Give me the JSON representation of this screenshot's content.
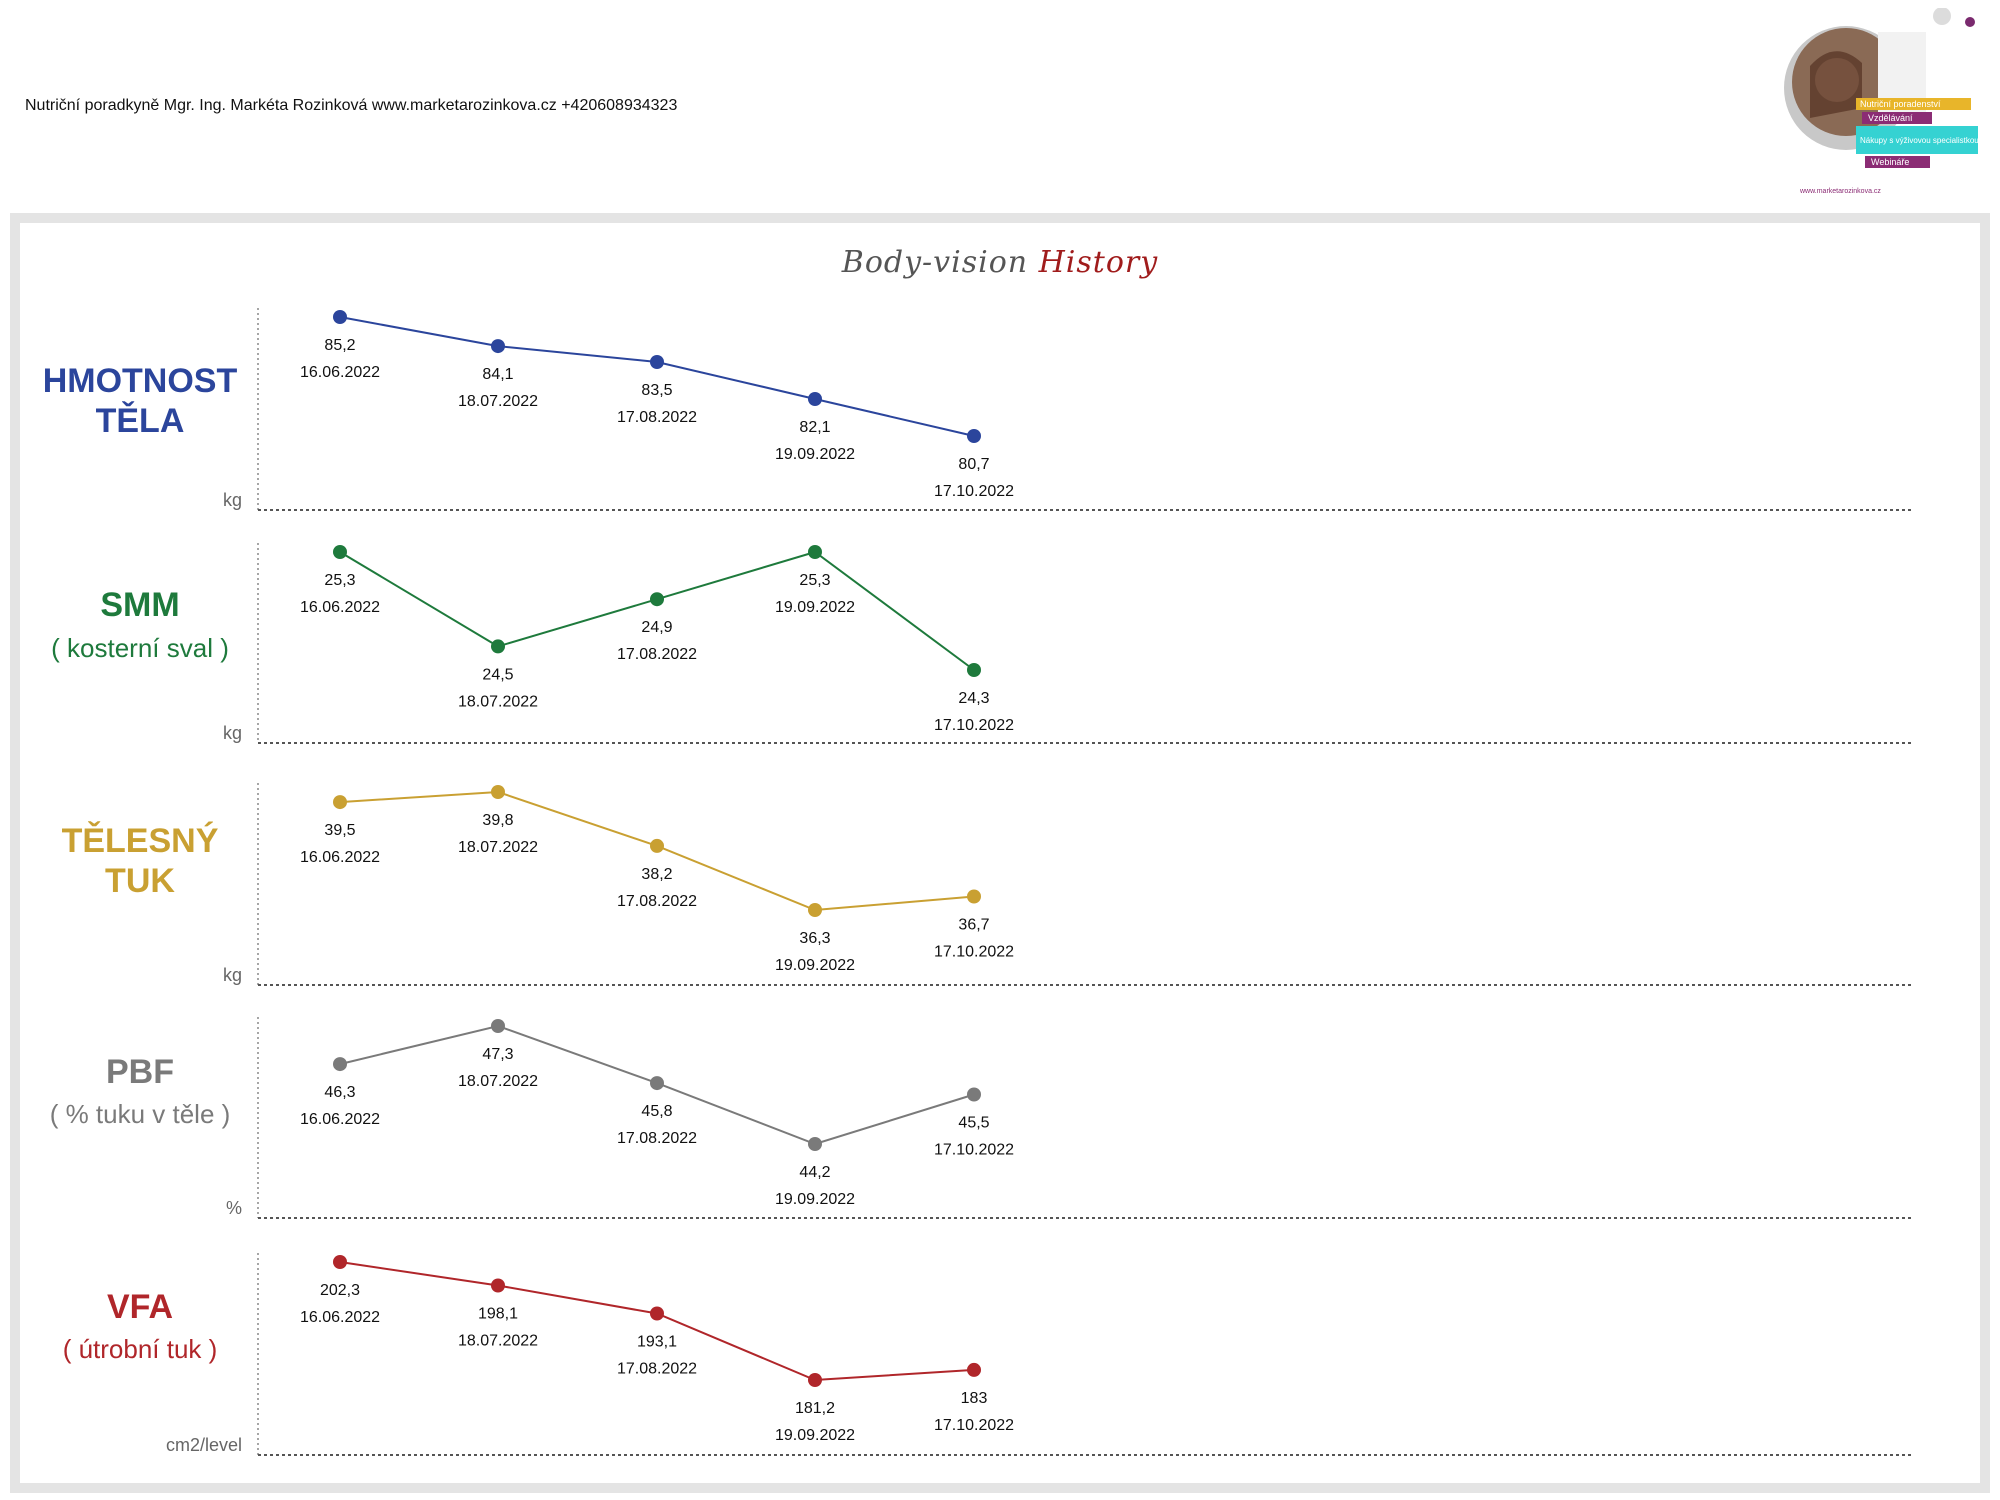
{
  "header": {
    "text": "Nutriční poradkyně Mgr. Ing. Markéta Rozinková www.marketarozinkova.cz +420608934323"
  },
  "logo": {
    "tags": [
      "Nutriční poradenství",
      "Vzdělávání",
      "Nákupy s výživovou specialistkou",
      "Webináře"
    ],
    "url": "www.marketarozinkova.cz"
  },
  "title": {
    "part1": "Body-vision",
    "part2": "History"
  },
  "chart_data": [
    {
      "type": "line",
      "title": [
        "HMOTNOST",
        "TĚLA"
      ],
      "unit": "kg",
      "color": "#2b459c",
      "x": [
        "16.06.2022",
        "18.07.2022",
        "17.08.2022",
        "19.09.2022",
        "17.10.2022"
      ],
      "values": [
        85.2,
        84.1,
        83.5,
        82.1,
        80.7
      ],
      "value_labels": [
        "85,2",
        "84,1",
        "83,5",
        "82,1",
        "80,7"
      ]
    },
    {
      "type": "line",
      "title": [
        "SMM",
        "( kosterní sval )"
      ],
      "unit": "kg",
      "color": "#1e7a3c",
      "x": [
        "16.06.2022",
        "18.07.2022",
        "17.08.2022",
        "19.09.2022",
        "17.10.2022"
      ],
      "values": [
        25.3,
        24.5,
        24.9,
        25.3,
        24.3
      ],
      "value_labels": [
        "25,3",
        "24,5",
        "24,9",
        "25,3",
        "24,3"
      ]
    },
    {
      "type": "line",
      "title": [
        "TĚLESNÝ",
        "TUK"
      ],
      "unit": "kg",
      "color": "#c9a032",
      "x": [
        "16.06.2022",
        "18.07.2022",
        "17.08.2022",
        "19.09.2022",
        "17.10.2022"
      ],
      "values": [
        39.5,
        39.8,
        38.2,
        36.3,
        36.7
      ],
      "value_labels": [
        "39,5",
        "39,8",
        "38,2",
        "36,3",
        "36,7"
      ]
    },
    {
      "type": "line",
      "title": [
        "PBF",
        "( % tuku v těle )"
      ],
      "unit": "%",
      "color": "#7a7a7a",
      "x": [
        "16.06.2022",
        "18.07.2022",
        "17.08.2022",
        "19.09.2022",
        "17.10.2022"
      ],
      "values": [
        46.3,
        47.3,
        45.8,
        44.2,
        45.5
      ],
      "value_labels": [
        "46,3",
        "47,3",
        "45,8",
        "44,2",
        "45,5"
      ]
    },
    {
      "type": "line",
      "title": [
        "VFA",
        "( útrobní tuk )"
      ],
      "unit": "cm2/level",
      "color": "#b0262a",
      "x": [
        "16.06.2022",
        "18.07.2022",
        "17.08.2022",
        "19.09.2022",
        "17.10.2022"
      ],
      "values": [
        202.3,
        198.1,
        193.1,
        181.2,
        183
      ],
      "value_labels": [
        "202,3",
        "198,1",
        "193,1",
        "181,2",
        "183"
      ]
    }
  ]
}
